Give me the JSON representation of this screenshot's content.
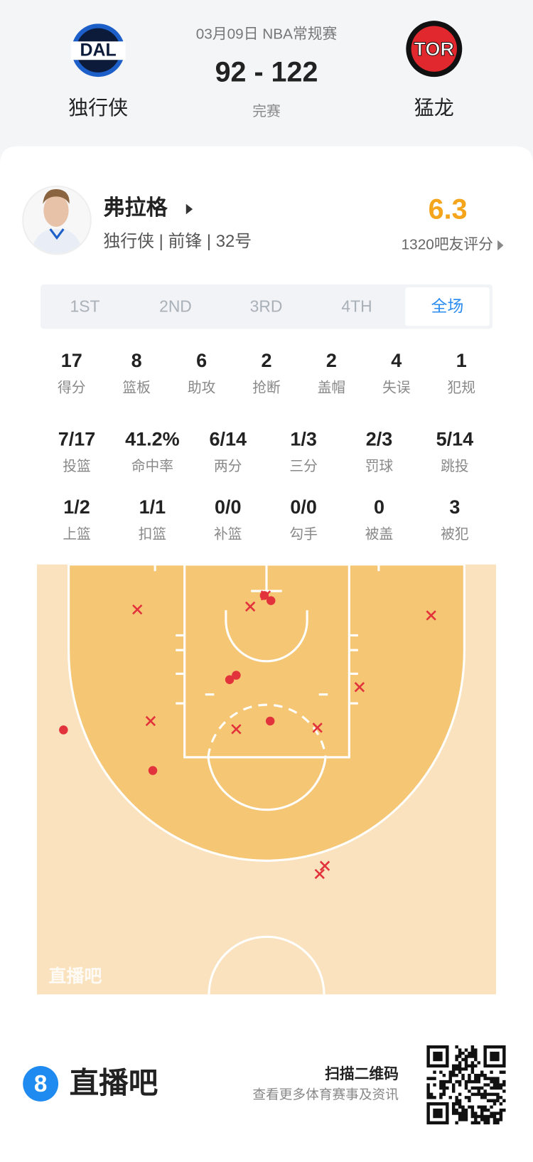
{
  "header": {
    "date_league": "03月09日 NBA常规赛",
    "score": "92 - 122",
    "status": "完赛",
    "home_team": {
      "logo": "DAL",
      "name": "独行侠"
    },
    "away_team": {
      "logo": "TOR",
      "name": "猛龙"
    }
  },
  "player": {
    "name": "弗拉格",
    "info": "独行侠 | 前锋 | 32号",
    "rating": "6.3",
    "rating_label": "1320吧友评分"
  },
  "tabs": [
    "1ST",
    "2ND",
    "3RD",
    "4TH",
    "全场"
  ],
  "selected_tab": 4,
  "stats": {
    "rows": [
      [
        {
          "value": "17",
          "label": "得分"
        },
        {
          "value": "8",
          "label": "篮板"
        },
        {
          "value": "6",
          "label": "助攻"
        },
        {
          "value": "2",
          "label": "抢断"
        },
        {
          "value": "2",
          "label": "盖帽"
        },
        {
          "value": "4",
          "label": "失误"
        },
        {
          "value": "1",
          "label": "犯规"
        }
      ],
      [
        {
          "value": "7/17",
          "label": "投篮"
        },
        {
          "value": "41.2%",
          "label": "命中率"
        },
        {
          "value": "6/14",
          "label": "两分"
        },
        {
          "value": "1/3",
          "label": "三分"
        },
        {
          "value": "2/3",
          "label": "罚球"
        },
        {
          "value": "5/14",
          "label": "跳投"
        }
      ],
      [
        {
          "value": "1/2",
          "label": "上篮"
        },
        {
          "value": "1/1",
          "label": "扣篮"
        },
        {
          "value": "0/0",
          "label": "补篮"
        },
        {
          "value": "0/0",
          "label": "勾手"
        },
        {
          "value": "0",
          "label": "被盖"
        },
        {
          "value": "3",
          "label": "被犯"
        }
      ]
    ]
  },
  "court": {
    "watermark": "直播吧"
  },
  "footer": {
    "logo": "8",
    "brand": "直播吧",
    "scan": "扫描二维码",
    "more": "查看更多体育赛事及资讯"
  }
}
